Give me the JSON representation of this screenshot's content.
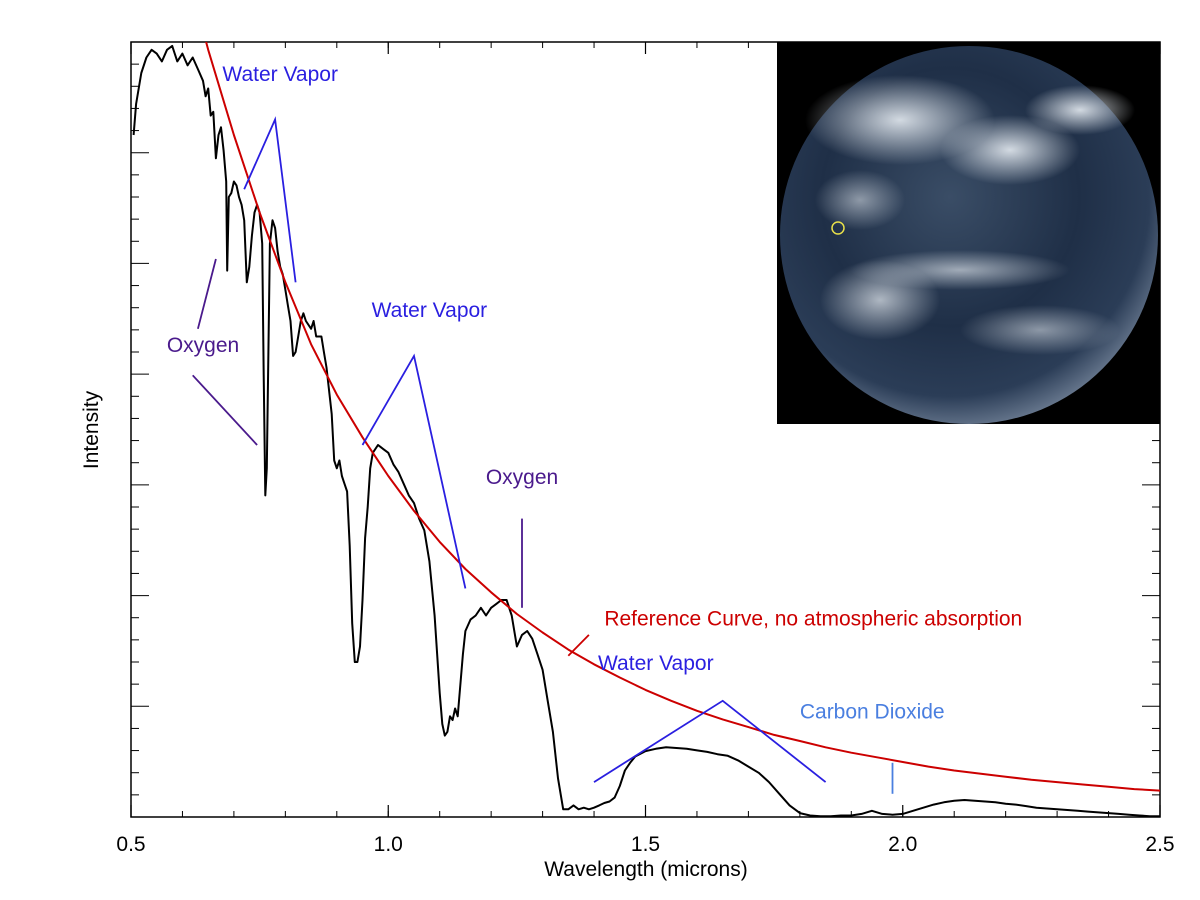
{
  "chart_data": {
    "type": "line",
    "title": "",
    "xlabel": "Wavelength (microns)",
    "ylabel": "Intensity",
    "xlim": [
      0.5,
      2.5
    ],
    "ylim": [
      0,
      1
    ],
    "grid": false,
    "x_ticks": [
      "0.5",
      "1.0",
      "1.5",
      "2.0",
      "2.5"
    ],
    "x_tick_values": [
      0.5,
      1.0,
      1.5,
      2.0,
      2.5
    ],
    "series": [
      {
        "role": "spectrum",
        "color": "#000000",
        "points": [
          [
            0.505,
            0.88
          ],
          [
            0.51,
            0.92
          ],
          [
            0.52,
            0.96
          ],
          [
            0.53,
            0.98
          ],
          [
            0.54,
            0.99
          ],
          [
            0.55,
            0.985
          ],
          [
            0.56,
            0.975
          ],
          [
            0.57,
            0.99
          ],
          [
            0.58,
            0.995
          ],
          [
            0.59,
            0.975
          ],
          [
            0.6,
            0.985
          ],
          [
            0.61,
            0.97
          ],
          [
            0.62,
            0.98
          ],
          [
            0.63,
            0.965
          ],
          [
            0.64,
            0.95
          ],
          [
            0.645,
            0.93
          ],
          [
            0.65,
            0.94
          ],
          [
            0.655,
            0.905
          ],
          [
            0.66,
            0.91
          ],
          [
            0.665,
            0.85
          ],
          [
            0.67,
            0.88
          ],
          [
            0.675,
            0.89
          ],
          [
            0.68,
            0.86
          ],
          [
            0.685,
            0.82
          ],
          [
            0.687,
            0.705
          ],
          [
            0.69,
            0.8
          ],
          [
            0.695,
            0.805
          ],
          [
            0.7,
            0.82
          ],
          [
            0.705,
            0.815
          ],
          [
            0.71,
            0.8
          ],
          [
            0.715,
            0.79
          ],
          [
            0.72,
            0.77
          ],
          [
            0.725,
            0.69
          ],
          [
            0.73,
            0.71
          ],
          [
            0.735,
            0.75
          ],
          [
            0.74,
            0.78
          ],
          [
            0.745,
            0.79
          ],
          [
            0.75,
            0.78
          ],
          [
            0.755,
            0.74
          ],
          [
            0.758,
            0.57
          ],
          [
            0.761,
            0.415
          ],
          [
            0.764,
            0.45
          ],
          [
            0.767,
            0.6
          ],
          [
            0.77,
            0.74
          ],
          [
            0.775,
            0.77
          ],
          [
            0.78,
            0.76
          ],
          [
            0.785,
            0.73
          ],
          [
            0.79,
            0.71
          ],
          [
            0.795,
            0.7
          ],
          [
            0.8,
            0.68
          ],
          [
            0.805,
            0.66
          ],
          [
            0.81,
            0.64
          ],
          [
            0.815,
            0.595
          ],
          [
            0.82,
            0.6
          ],
          [
            0.825,
            0.62
          ],
          [
            0.83,
            0.64
          ],
          [
            0.835,
            0.65
          ],
          [
            0.84,
            0.64
          ],
          [
            0.85,
            0.63
          ],
          [
            0.855,
            0.64
          ],
          [
            0.86,
            0.62
          ],
          [
            0.87,
            0.62
          ],
          [
            0.875,
            0.6
          ],
          [
            0.88,
            0.58
          ],
          [
            0.89,
            0.52
          ],
          [
            0.895,
            0.46
          ],
          [
            0.9,
            0.45
          ],
          [
            0.905,
            0.46
          ],
          [
            0.91,
            0.44
          ],
          [
            0.915,
            0.43
          ],
          [
            0.92,
            0.42
          ],
          [
            0.925,
            0.35
          ],
          [
            0.93,
            0.25
          ],
          [
            0.935,
            0.2
          ],
          [
            0.94,
            0.2
          ],
          [
            0.945,
            0.22
          ],
          [
            0.95,
            0.28
          ],
          [
            0.955,
            0.36
          ],
          [
            0.96,
            0.4
          ],
          [
            0.965,
            0.45
          ],
          [
            0.97,
            0.47
          ],
          [
            0.98,
            0.48
          ],
          [
            0.99,
            0.475
          ],
          [
            1.0,
            0.47
          ],
          [
            1.01,
            0.455
          ],
          [
            1.02,
            0.445
          ],
          [
            1.03,
            0.43
          ],
          [
            1.04,
            0.415
          ],
          [
            1.05,
            0.405
          ],
          [
            1.06,
            0.385
          ],
          [
            1.07,
            0.37
          ],
          [
            1.08,
            0.33
          ],
          [
            1.09,
            0.26
          ],
          [
            1.1,
            0.16
          ],
          [
            1.105,
            0.12
          ],
          [
            1.11,
            0.105
          ],
          [
            1.115,
            0.11
          ],
          [
            1.12,
            0.13
          ],
          [
            1.125,
            0.125
          ],
          [
            1.13,
            0.14
          ],
          [
            1.135,
            0.13
          ],
          [
            1.14,
            0.17
          ],
          [
            1.145,
            0.21
          ],
          [
            1.15,
            0.24
          ],
          [
            1.16,
            0.255
          ],
          [
            1.17,
            0.26
          ],
          [
            1.18,
            0.27
          ],
          [
            1.19,
            0.26
          ],
          [
            1.2,
            0.27
          ],
          [
            1.21,
            0.275
          ],
          [
            1.22,
            0.28
          ],
          [
            1.23,
            0.28
          ],
          [
            1.24,
            0.26
          ],
          [
            1.25,
            0.22
          ],
          [
            1.26,
            0.235
          ],
          [
            1.27,
            0.24
          ],
          [
            1.28,
            0.23
          ],
          [
            1.29,
            0.21
          ],
          [
            1.3,
            0.19
          ],
          [
            1.31,
            0.15
          ],
          [
            1.32,
            0.11
          ],
          [
            1.33,
            0.05
          ],
          [
            1.34,
            0.01
          ],
          [
            1.35,
            0.01
          ],
          [
            1.36,
            0.015
          ],
          [
            1.37,
            0.01
          ],
          [
            1.38,
            0.012
          ],
          [
            1.39,
            0.01
          ],
          [
            1.4,
            0.012
          ],
          [
            1.41,
            0.015
          ],
          [
            1.42,
            0.018
          ],
          [
            1.43,
            0.02
          ],
          [
            1.44,
            0.025
          ],
          [
            1.45,
            0.04
          ],
          [
            1.46,
            0.06
          ],
          [
            1.47,
            0.07
          ],
          [
            1.48,
            0.078
          ],
          [
            1.5,
            0.085
          ],
          [
            1.52,
            0.088
          ],
          [
            1.54,
            0.09
          ],
          [
            1.56,
            0.089
          ],
          [
            1.58,
            0.088
          ],
          [
            1.6,
            0.086
          ],
          [
            1.62,
            0.084
          ],
          [
            1.64,
            0.081
          ],
          [
            1.66,
            0.079
          ],
          [
            1.68,
            0.073
          ],
          [
            1.7,
            0.065
          ],
          [
            1.72,
            0.057
          ],
          [
            1.74,
            0.045
          ],
          [
            1.76,
            0.03
          ],
          [
            1.78,
            0.015
          ],
          [
            1.8,
            0.005
          ],
          [
            1.82,
            0.002
          ],
          [
            1.84,
            0.001
          ],
          [
            1.86,
            0.001
          ],
          [
            1.88,
            0.002
          ],
          [
            1.9,
            0.002
          ],
          [
            1.92,
            0.004
          ],
          [
            1.94,
            0.008
          ],
          [
            1.96,
            0.004
          ],
          [
            1.98,
            0.003
          ],
          [
            2.0,
            0.004
          ],
          [
            2.02,
            0.008
          ],
          [
            2.04,
            0.012
          ],
          [
            2.06,
            0.016
          ],
          [
            2.08,
            0.019
          ],
          [
            2.1,
            0.021
          ],
          [
            2.12,
            0.022
          ],
          [
            2.14,
            0.021
          ],
          [
            2.16,
            0.02
          ],
          [
            2.18,
            0.019
          ],
          [
            2.2,
            0.017
          ],
          [
            2.22,
            0.016
          ],
          [
            2.24,
            0.014
          ],
          [
            2.26,
            0.012
          ],
          [
            2.28,
            0.011
          ],
          [
            2.3,
            0.01
          ],
          [
            2.32,
            0.009
          ],
          [
            2.34,
            0.008
          ],
          [
            2.36,
            0.007
          ],
          [
            2.38,
            0.006
          ],
          [
            2.4,
            0.005
          ],
          [
            2.42,
            0.004
          ],
          [
            2.44,
            0.003
          ],
          [
            2.46,
            0.002
          ],
          [
            2.48,
            0.001
          ],
          [
            2.5,
            0.001
          ]
        ]
      },
      {
        "role": "reference",
        "name": "Reference Curve, no atmospheric absorption",
        "color": "#cc0000",
        "points": [
          [
            0.63,
            1.04
          ],
          [
            0.65,
            0.99
          ],
          [
            0.7,
            0.88
          ],
          [
            0.75,
            0.78
          ],
          [
            0.8,
            0.69
          ],
          [
            0.85,
            0.61
          ],
          [
            0.9,
            0.545
          ],
          [
            0.95,
            0.49
          ],
          [
            1.0,
            0.44
          ],
          [
            1.05,
            0.395
          ],
          [
            1.1,
            0.355
          ],
          [
            1.15,
            0.32
          ],
          [
            1.2,
            0.29
          ],
          [
            1.25,
            0.262
          ],
          [
            1.3,
            0.238
          ],
          [
            1.35,
            0.216
          ],
          [
            1.4,
            0.197
          ],
          [
            1.45,
            0.18
          ],
          [
            1.5,
            0.164
          ],
          [
            1.55,
            0.15
          ],
          [
            1.6,
            0.137
          ],
          [
            1.65,
            0.126
          ],
          [
            1.7,
            0.116
          ],
          [
            1.75,
            0.106
          ],
          [
            1.8,
            0.098
          ],
          [
            1.85,
            0.09
          ],
          [
            1.9,
            0.083
          ],
          [
            1.95,
            0.077
          ],
          [
            2.0,
            0.071
          ],
          [
            2.05,
            0.065
          ],
          [
            2.1,
            0.06
          ],
          [
            2.15,
            0.056
          ],
          [
            2.2,
            0.052
          ],
          [
            2.25,
            0.048
          ],
          [
            2.3,
            0.045
          ],
          [
            2.35,
            0.042
          ],
          [
            2.4,
            0.039
          ],
          [
            2.45,
            0.036
          ],
          [
            2.5,
            0.034
          ]
        ]
      }
    ],
    "annotations": [
      {
        "id": "water-vapor-1",
        "text": "Water Vapor",
        "color": "#2a1fe0",
        "anchor": [
          0.79,
          0.95
        ],
        "lines": [
          [
            [
              0.72,
              0.81
            ],
            [
              0.78,
              0.9
            ],
            [
              0.82,
              0.69
            ]
          ]
        ]
      },
      {
        "id": "oxygen-1",
        "text": "Oxygen",
        "color": "#4a1a8c",
        "anchor": [
          0.64,
          0.6
        ],
        "lines": [
          [
            [
              0.665,
              0.72
            ],
            [
              0.63,
              0.63
            ]
          ],
          [
            [
              0.62,
              0.57
            ],
            [
              0.745,
              0.48
            ]
          ]
        ]
      },
      {
        "id": "water-vapor-2",
        "text": "Water Vapor",
        "color": "#2a1fe0",
        "anchor": [
          1.08,
          0.645
        ],
        "lines": [
          [
            [
              0.95,
              0.48
            ],
            [
              1.05,
              0.595
            ],
            [
              1.15,
              0.295
            ]
          ]
        ]
      },
      {
        "id": "oxygen-2",
        "text": "Oxygen",
        "color": "#4a1a8c",
        "anchor": [
          1.26,
          0.43
        ],
        "lines": [
          [
            [
              1.26,
              0.385
            ],
            [
              1.26,
              0.27
            ]
          ]
        ]
      },
      {
        "id": "reference-label",
        "text": "Reference Curve, no atmospheric absorption",
        "color": "#cc0000",
        "anchor": [
          1.42,
          0.247
        ],
        "lines": [
          [
            [
              1.39,
              0.235
            ],
            [
              1.35,
              0.208
            ]
          ]
        ]
      },
      {
        "id": "water-vapor-3",
        "text": "Water Vapor",
        "color": "#2a1fe0",
        "anchor": [
          1.52,
          0.19
        ],
        "lines": [
          [
            [
              1.4,
              0.045
            ],
            [
              1.65,
              0.15
            ],
            [
              1.85,
              0.045
            ]
          ]
        ]
      },
      {
        "id": "carbon-dioxide",
        "text": "Carbon Dioxide",
        "color": "#4a7fe0",
        "anchor": [
          1.8,
          0.127
        ],
        "lines": [
          [
            [
              1.98,
              0.07
            ],
            [
              1.98,
              0.03
            ]
          ]
        ]
      }
    ],
    "inset": {
      "content": "earth-globe-image",
      "marker": "yellow-circle"
    }
  }
}
